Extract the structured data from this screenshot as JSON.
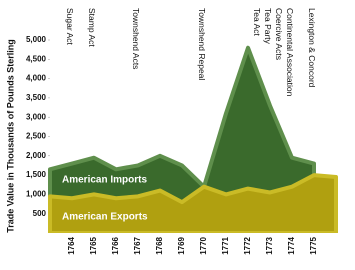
{
  "chart_data": {
    "type": "area",
    "y_label": "Trade Value in Thousands of Pounds Sterling",
    "x": [
      1763,
      1764,
      1765,
      1766,
      1767,
      1768,
      1769,
      1770,
      1771,
      1772,
      1773,
      1774,
      1775,
      1776
    ],
    "series": [
      {
        "name": "American Imports",
        "color": "#3a6a2c",
        "edge": "#5f8f4c",
        "values": [
          1650,
          1800,
          1950,
          1650,
          1750,
          2000,
          1750,
          1200,
          3100,
          4800,
          3300,
          1950,
          1800,
          null
        ]
      },
      {
        "name": "American Exports",
        "color": "#b0a010",
        "edge": "#cabb26",
        "values": [
          950,
          900,
          1000,
          900,
          950,
          1100,
          800,
          1200,
          1000,
          1150,
          1050,
          1200,
          1500,
          1450
        ]
      }
    ],
    "xlim": [
      1763,
      1776.3
    ],
    "xticks": [
      1764,
      1765,
      1766,
      1767,
      1768,
      1769,
      1770,
      1771,
      1772,
      1773,
      1774,
      1775
    ],
    "ylim": [
      0,
      5000
    ],
    "yticks": [
      500,
      {
        "value": 1000,
        "label": "1,000"
      },
      {
        "value": 1500,
        "label": "1,500"
      },
      {
        "value": 2000,
        "label": "2,000"
      },
      {
        "value": 2500,
        "label": "2,500"
      },
      {
        "value": 3000,
        "label": "3,000"
      },
      {
        "value": 3500,
        "label": "3,500"
      },
      {
        "value": 4000,
        "label": "4,000"
      },
      {
        "value": 4500,
        "label": "4,500"
      },
      {
        "value": 5000,
        "label": "5,000"
      }
    ],
    "annotations": [
      {
        "text": "Sugar Act",
        "x": 1764
      },
      {
        "text": "Stamp Act",
        "x": 1765
      },
      {
        "text": "Townshend Acts",
        "x": 1767
      },
      {
        "text": "Townshend Repeal",
        "x": 1770
      },
      {
        "text": "Tea Act",
        "x": 1772.5
      },
      {
        "text": "Tea Party",
        "x": 1773
      },
      {
        "text": "Coercive Acts",
        "x": 1773.5
      },
      {
        "text": "Continental Association",
        "x": 1774
      },
      {
        "text": "Lexington & Concord",
        "x": 1775
      }
    ]
  }
}
